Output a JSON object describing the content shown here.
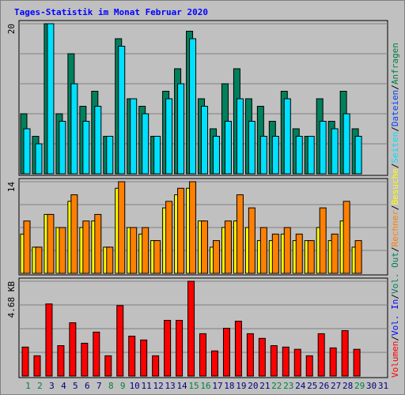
{
  "chart_data": {
    "type": "bar",
    "title": "Tages-Statistik im Monat Februar 2020",
    "categories": [
      "1",
      "2",
      "3",
      "4",
      "5",
      "6",
      "7",
      "8",
      "9",
      "10",
      "11",
      "12",
      "13",
      "14",
      "15",
      "16",
      "17",
      "18",
      "19",
      "20",
      "21",
      "22",
      "23",
      "24",
      "25",
      "26",
      "27",
      "28",
      "29",
      "30",
      "31"
    ],
    "category_colors": [
      "#008040",
      "#008040",
      "#000080",
      "#000080",
      "#000080",
      "#000080",
      "#000080",
      "#008040",
      "#008040",
      "#000080",
      "#000080",
      "#000080",
      "#000080",
      "#000080",
      "#008040",
      "#008040",
      "#000080",
      "#000080",
      "#000080",
      "#000080",
      "#000080",
      "#008040",
      "#008040",
      "#000080",
      "#000080",
      "#000080",
      "#000080",
      "#000080",
      "#008040",
      "#000080",
      "#000080"
    ],
    "legend_separator": "/",
    "legend": [
      {
        "name": "Volumen",
        "color": "#ff0000"
      },
      {
        "name": "Vol. In",
        "color": "#0000ff"
      },
      {
        "name": "Vol. Out",
        "color": "#00805c"
      },
      {
        "name": "Rechner",
        "color": "#ff8000"
      },
      {
        "name": "Besuche",
        "color": "#ffff00"
      },
      {
        "name": "Seiten",
        "color": "#00e0ff"
      },
      {
        "name": "Dateien",
        "color": "#0040ff"
      },
      {
        "name": "Anfragen",
        "color": "#008040"
      }
    ],
    "panels": [
      {
        "ylim": [
          0,
          20
        ],
        "yticks": [
          20
        ],
        "ygrid": [
          4,
          8,
          12,
          16
        ],
        "series": [
          {
            "color": "#00805c",
            "values": [
              8,
              5,
              20,
              8,
              16,
              9,
              11,
              5,
              18,
              10,
              9,
              5,
              11,
              14,
              19,
              10,
              6,
              12,
              14,
              10,
              9,
              7,
              11,
              6,
              5,
              10,
              7,
              11,
              6,
              null,
              null
            ]
          },
          {
            "color": "#00e0ff",
            "values": [
              6,
              4,
              20,
              7,
              12,
              7,
              9,
              5,
              17,
              10,
              8,
              5,
              10,
              12,
              18,
              9,
              5,
              7,
              10,
              7,
              5,
              5,
              10,
              5,
              5,
              7,
              6,
              8,
              5,
              null,
              null
            ]
          }
        ]
      },
      {
        "ylim": [
          0,
          14
        ],
        "yticks": [
          14
        ],
        "ygrid": [
          3.5,
          7,
          10.5
        ],
        "series": [
          {
            "color": "#ffff00",
            "values": [
              6,
              4,
              9,
              7,
              11,
              7,
              8,
              4,
              13,
              7,
              6,
              5,
              10,
              12,
              13,
              8,
              4,
              7,
              8,
              7,
              5,
              5,
              6,
              5,
              5,
              7,
              5,
              8,
              4,
              null,
              null
            ]
          },
          {
            "color": "#ff8000",
            "values": [
              8,
              4,
              9,
              7,
              12,
              8,
              9,
              4,
              14,
              7,
              7,
              5,
              11,
              13,
              14,
              8,
              5,
              8,
              12,
              10,
              7,
              6,
              7,
              6,
              5,
              10,
              6,
              11,
              5,
              null,
              null
            ]
          }
        ]
      },
      {
        "ylim": [
          0,
          4.68
        ],
        "yticks": [
          {
            "value": 4.68,
            "label": "4.68 KB"
          }
        ],
        "ygrid": [
          1.17,
          2.34,
          3.51
        ],
        "series": [
          {
            "color": "#ff0000",
            "values": [
              1.43,
              1.0,
              3.56,
              1.5,
              2.63,
              1.62,
              2.17,
              1.0,
              3.48,
              1.97,
              1.78,
              1.0,
              2.75,
              2.75,
              4.68,
              2.09,
              1.24,
              2.36,
              2.71,
              2.09,
              1.86,
              1.5,
              1.43,
              1.32,
              1.0,
              2.09,
              1.39,
              2.24,
              1.32,
              null,
              null
            ]
          }
        ]
      }
    ]
  }
}
